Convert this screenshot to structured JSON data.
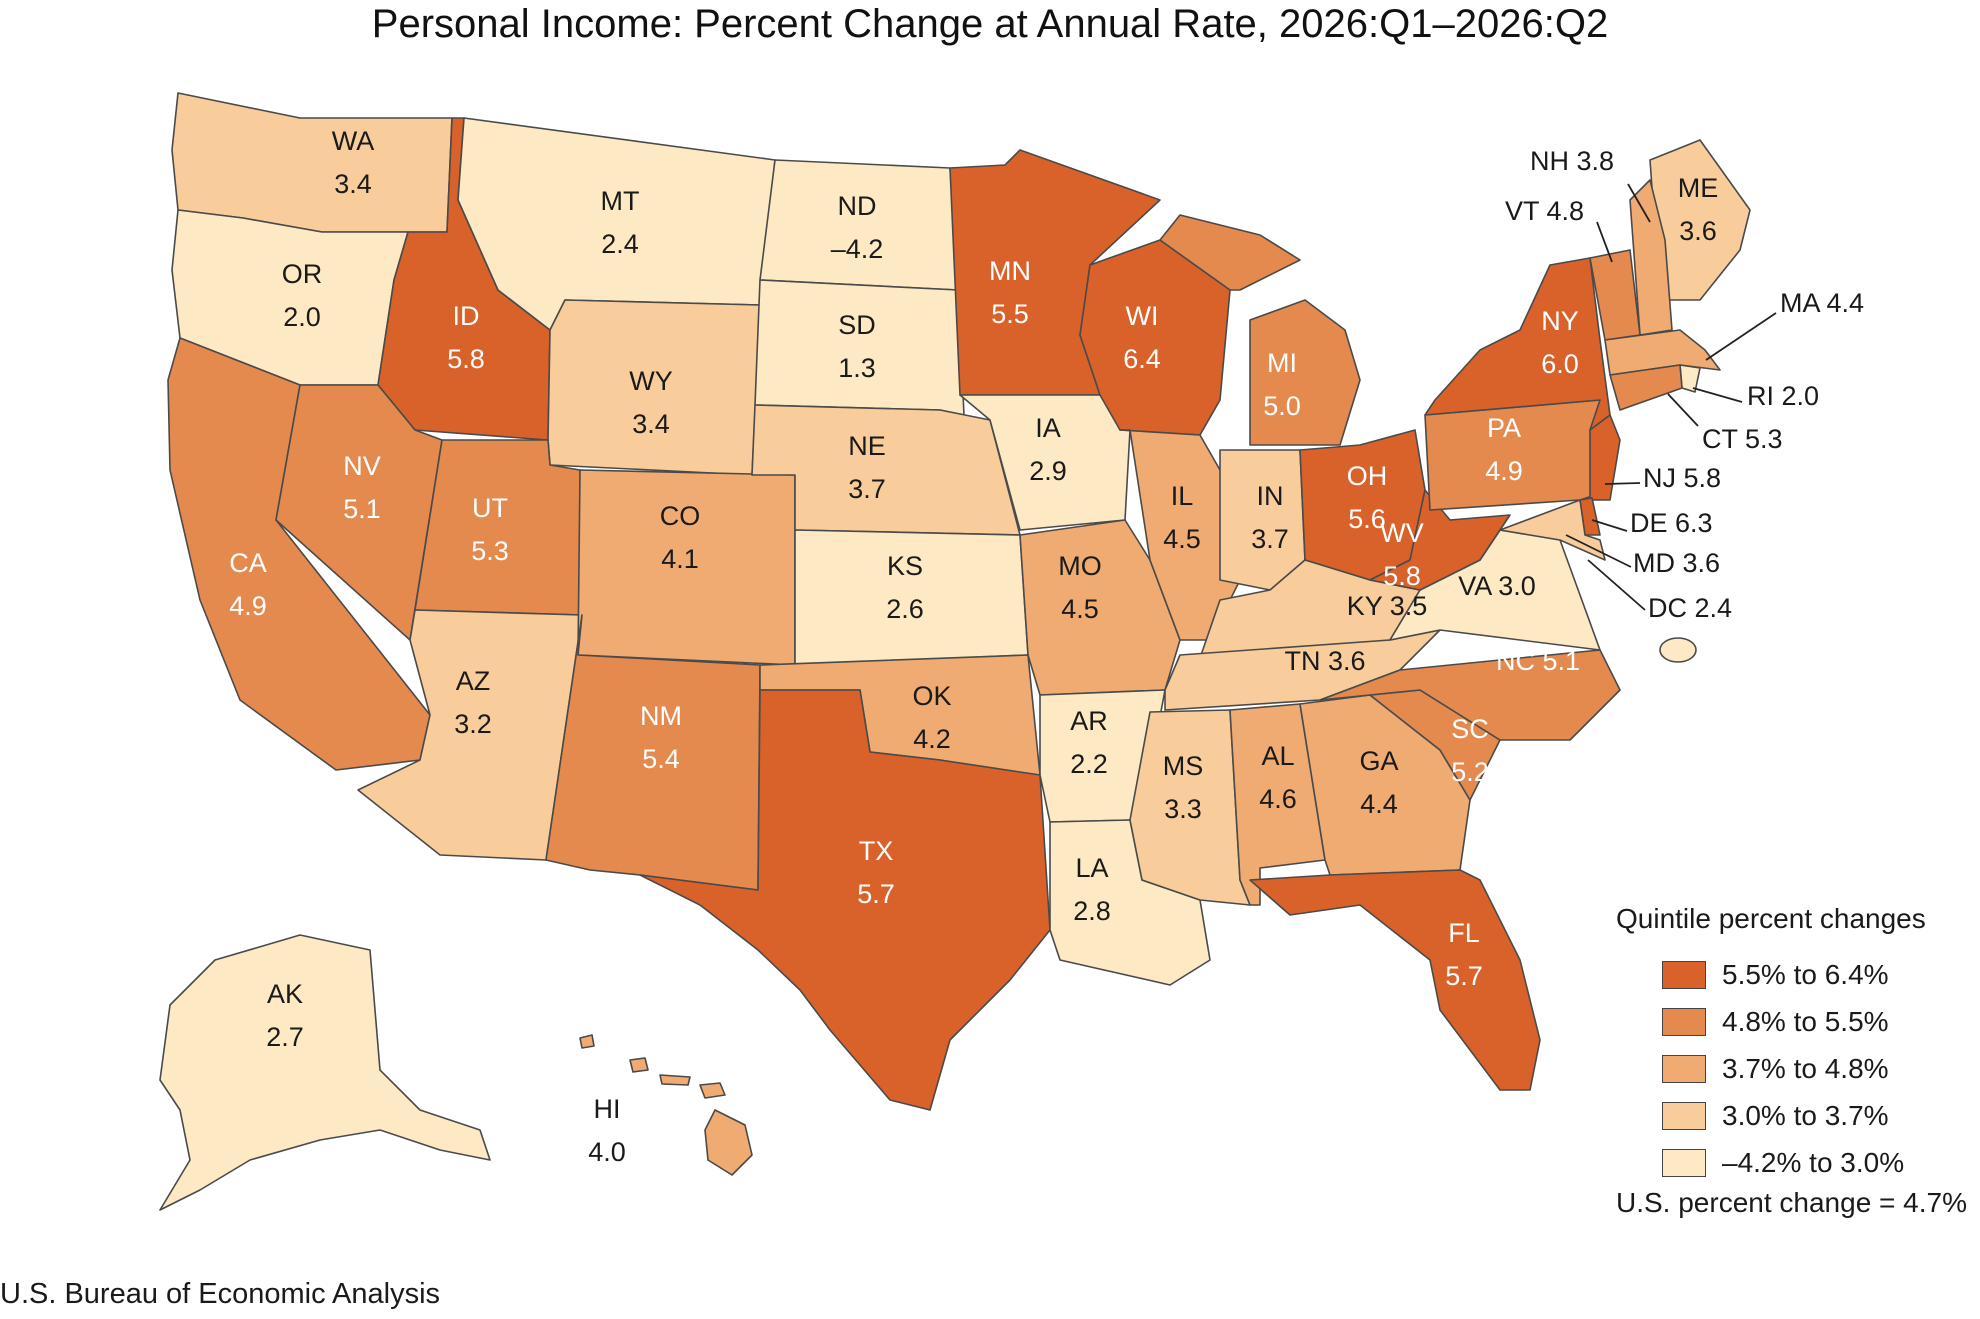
{
  "title": "Personal Income: Percent Change at Annual Rate, 2026:Q1–2026:Q2",
  "source": "U.S. Bureau of Economic Analysis",
  "legend": {
    "title": "Quintile percent changes",
    "items": [
      {
        "label": "5.5% to 6.4%",
        "color": "#d9622b"
      },
      {
        "label": "4.8% to 5.5%",
        "color": "#e58a4e"
      },
      {
        "label": "3.7% to 4.8%",
        "color": "#efab72"
      },
      {
        "label": "3.0% to 3.7%",
        "color": "#f8cc9b"
      },
      {
        "label": "–4.2% to 3.0%",
        "color": "#fde9c3"
      }
    ],
    "us_change": "U.S. percent change = 4.7%"
  },
  "states": {
    "WA": {
      "abbr": "WA",
      "value": "3.4",
      "color": "#f8cc9b"
    },
    "OR": {
      "abbr": "OR",
      "value": "2.0",
      "color": "#fde9c3"
    },
    "CA": {
      "abbr": "CA",
      "value": "4.9",
      "color": "#e58a4e"
    },
    "ID": {
      "abbr": "ID",
      "value": "5.8",
      "color": "#d9622b"
    },
    "NV": {
      "abbr": "NV",
      "value": "5.1",
      "color": "#e58a4e"
    },
    "MT": {
      "abbr": "MT",
      "value": "2.4",
      "color": "#fde9c3"
    },
    "WY": {
      "abbr": "WY",
      "value": "3.4",
      "color": "#f8cc9b"
    },
    "UT": {
      "abbr": "UT",
      "value": "5.3",
      "color": "#e58a4e"
    },
    "AZ": {
      "abbr": "AZ",
      "value": "3.2",
      "color": "#f8cc9b"
    },
    "CO": {
      "abbr": "CO",
      "value": "4.1",
      "color": "#efab72"
    },
    "NM": {
      "abbr": "NM",
      "value": "5.4",
      "color": "#e58a4e"
    },
    "ND": {
      "abbr": "ND",
      "value": "–4.2",
      "color": "#fde9c3"
    },
    "SD": {
      "abbr": "SD",
      "value": "1.3",
      "color": "#fde9c3"
    },
    "NE": {
      "abbr": "NE",
      "value": "3.7",
      "color": "#f8cc9b"
    },
    "KS": {
      "abbr": "KS",
      "value": "2.6",
      "color": "#fde9c3"
    },
    "OK": {
      "abbr": "OK",
      "value": "4.2",
      "color": "#efab72"
    },
    "TX": {
      "abbr": "TX",
      "value": "5.7",
      "color": "#d9622b"
    },
    "MN": {
      "abbr": "MN",
      "value": "5.5",
      "color": "#d9622b"
    },
    "IA": {
      "abbr": "IA",
      "value": "2.9",
      "color": "#fde9c3"
    },
    "MO": {
      "abbr": "MO",
      "value": "4.5",
      "color": "#efab72"
    },
    "AR": {
      "abbr": "AR",
      "value": "2.2",
      "color": "#fde9c3"
    },
    "LA": {
      "abbr": "LA",
      "value": "2.8",
      "color": "#fde9c3"
    },
    "WI": {
      "abbr": "WI",
      "value": "6.4",
      "color": "#d9622b"
    },
    "IL": {
      "abbr": "IL",
      "value": "4.5",
      "color": "#efab72"
    },
    "MI": {
      "abbr": "MI",
      "value": "5.0",
      "color": "#e58a4e"
    },
    "IN": {
      "abbr": "IN",
      "value": "3.7",
      "color": "#f8cc9b"
    },
    "OH": {
      "abbr": "OH",
      "value": "5.6",
      "color": "#d9622b"
    },
    "KY": {
      "abbr": "KY",
      "value": "3.5",
      "color": "#f8cc9b"
    },
    "TN": {
      "abbr": "TN",
      "value": "3.6",
      "color": "#f8cc9b"
    },
    "MS": {
      "abbr": "MS",
      "value": "3.3",
      "color": "#f8cc9b"
    },
    "AL": {
      "abbr": "AL",
      "value": "4.6",
      "color": "#efab72"
    },
    "GA": {
      "abbr": "GA",
      "value": "4.4",
      "color": "#efab72"
    },
    "FL": {
      "abbr": "FL",
      "value": "5.7",
      "color": "#d9622b"
    },
    "SC": {
      "abbr": "SC",
      "value": "5.2",
      "color": "#e58a4e"
    },
    "NC": {
      "abbr": "NC",
      "value": "5.1",
      "color": "#e58a4e"
    },
    "VA": {
      "abbr": "VA",
      "value": "3.0",
      "color": "#fde9c3"
    },
    "WV": {
      "abbr": "WV",
      "value": "5.8",
      "color": "#d9622b"
    },
    "PA": {
      "abbr": "PA",
      "value": "4.9",
      "color": "#e58a4e"
    },
    "NY": {
      "abbr": "NY",
      "value": "6.0",
      "color": "#d9622b"
    },
    "ME": {
      "abbr": "ME",
      "value": "3.6",
      "color": "#f8cc9b"
    },
    "NH": {
      "abbr": "NH",
      "value": "3.8",
      "color": "#efab72"
    },
    "VT": {
      "abbr": "VT",
      "value": "4.8",
      "color": "#e58a4e"
    },
    "MA": {
      "abbr": "MA",
      "value": "4.4",
      "color": "#efab72"
    },
    "RI": {
      "abbr": "RI",
      "value": "2.0",
      "color": "#fde9c3"
    },
    "CT": {
      "abbr": "CT",
      "value": "5.3",
      "color": "#e58a4e"
    },
    "NJ": {
      "abbr": "NJ",
      "value": "5.8",
      "color": "#d9622b"
    },
    "DE": {
      "abbr": "DE",
      "value": "6.3",
      "color": "#d9622b"
    },
    "MD": {
      "abbr": "MD",
      "value": "3.6",
      "color": "#f8cc9b"
    },
    "DC": {
      "abbr": "DC",
      "value": "2.4",
      "color": "#fde9c3"
    },
    "AK": {
      "abbr": "AK",
      "value": "2.7",
      "color": "#fde9c3"
    },
    "HI": {
      "abbr": "HI",
      "value": "4.0",
      "color": "#efab72"
    }
  }
}
